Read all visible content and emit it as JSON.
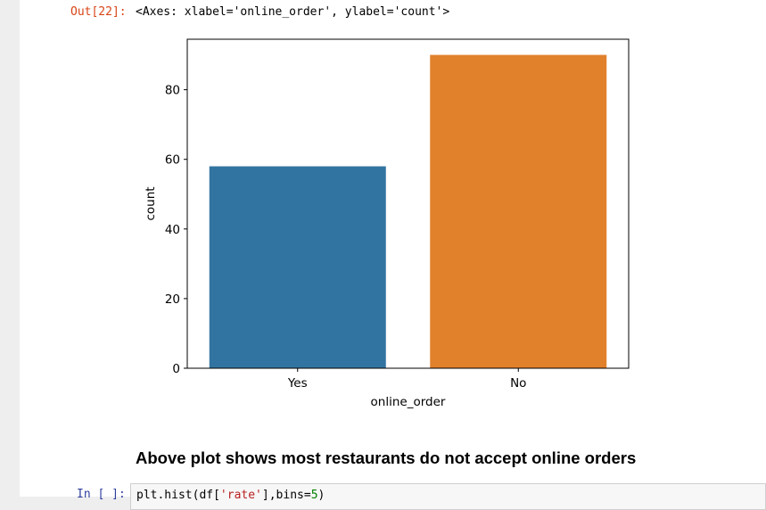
{
  "cell_output": {
    "prompt": "Out[22]:",
    "repr_text": "<Axes: xlabel='online_order', ylabel='count'>"
  },
  "chart_data": {
    "type": "bar",
    "categories": [
      "Yes",
      "No"
    ],
    "values": [
      58,
      90
    ],
    "colors": [
      "#3274a1",
      "#e1812c"
    ],
    "xlabel": "online_order",
    "ylabel": "count",
    "ylim": [
      0,
      94.5
    ],
    "yticks": [
      0,
      20,
      40,
      60,
      80
    ],
    "grid": false
  },
  "markdown": {
    "heading": "Above plot shows most restaurants do not accept online orders"
  },
  "next_cell": {
    "prompt": "In [ ]:",
    "code_prefix": "plt.hist(df[",
    "code_string": "'rate'",
    "code_middle": "],bins=",
    "code_number": "5",
    "code_suffix": ")"
  }
}
